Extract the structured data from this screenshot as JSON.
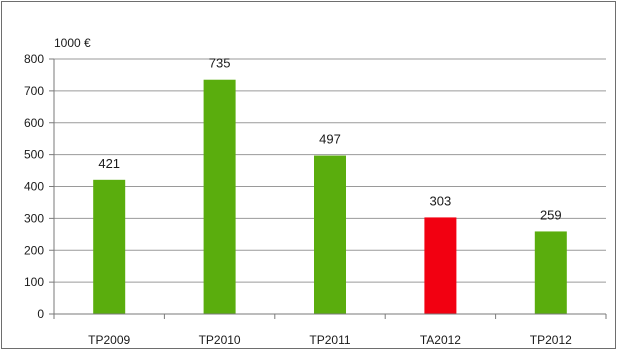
{
  "chart_data": {
    "type": "bar",
    "unit_label": "1000 €",
    "categories": [
      "TP2009",
      "TP2010",
      "TP2011",
      "TA2012",
      "TP2012"
    ],
    "values": [
      421,
      735,
      497,
      303,
      259
    ],
    "data_labels": [
      "421",
      "735",
      "497",
      "303",
      "259"
    ],
    "bar_colors": [
      "#5aad0d",
      "#5aad0d",
      "#5aad0d",
      "#f20011",
      "#5aad0d"
    ],
    "ylim": [
      0,
      800
    ],
    "yticks": [
      0,
      100,
      200,
      300,
      400,
      500,
      600,
      700,
      800
    ],
    "ytick_labels": [
      "0",
      "100",
      "200",
      "300",
      "400",
      "500",
      "600",
      "700",
      "800"
    ],
    "grid": true,
    "legend": "none"
  }
}
